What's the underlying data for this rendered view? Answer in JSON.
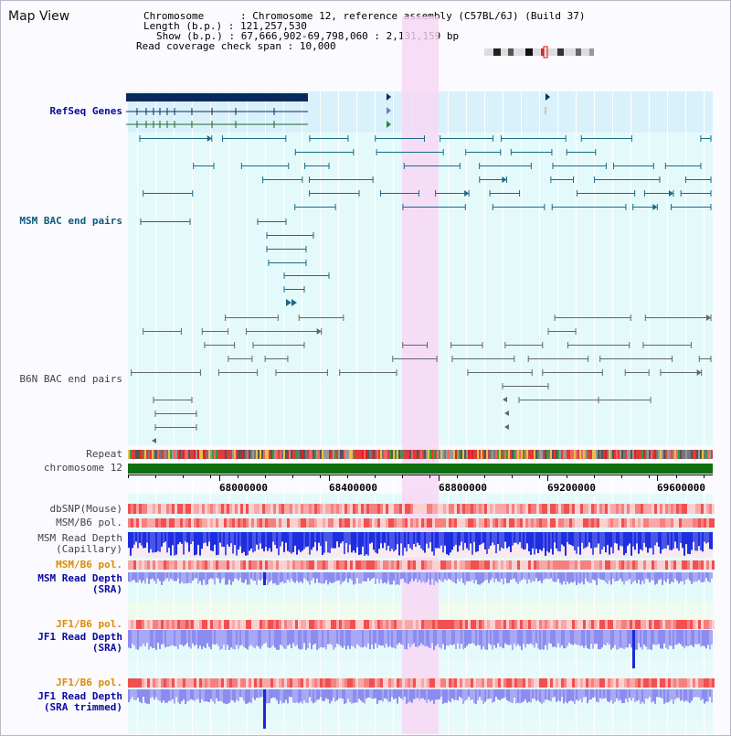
{
  "header": {
    "title": "Map View",
    "chromosome_label": "Chromosome",
    "chromosome_value": "Chromosome 12, reference assembly (C57BL/6J) (Build 37)",
    "length_label": "Length (b.p.)",
    "length_value": "121,257,530",
    "show_label": "Show (b.p.)",
    "show_value": "67,666,902-69,798,060 : 2,131,159 bp",
    "coverage_label": "Read coverage check span",
    "coverage_value": "10,000"
  },
  "tracks": {
    "refseq": "RefSeq Genes",
    "msm_bac": "MSM BAC end pairs",
    "b6n_bac": "B6N BAC end pairs",
    "repeat": "Repeat",
    "chromosome": "chromosome 12",
    "dbsnp": "dbSNP(Mouse)",
    "msm_b6_pol_1": "MSM/B6 pol.",
    "msm_read_cap_1": "MSM Read Depth",
    "msm_read_cap_2": "(Capillary)",
    "msm_b6_pol_2": "MSM/B6 pol.",
    "msm_read_sra_1": "MSM Read Depth",
    "msm_read_sra_2": "(SRA)",
    "jf1_b6_pol_1": "JF1/B6 pol.",
    "jf1_read_sra_1": "JF1 Read Depth",
    "jf1_read_sra_2": "(SRA)",
    "jf1_b6_pol_2": "JF1/B6 pol.",
    "jf1_trim_1": "JF1 Read Depth",
    "jf1_trim_2": "(SRA trimmed)"
  },
  "axis": {
    "ticks": [
      "68000000",
      "68400000",
      "68800000",
      "69200000",
      "69600000"
    ]
  },
  "colors": {
    "highlight": "#f7d6f4",
    "refseq_bg": "#d9f1fb",
    "track_bg": "#e4fafa",
    "gene_dark": "#0a2a5e",
    "msm_bac": "#1a6a88",
    "b6n_bac": "#666666",
    "chromosome": "#0f7010",
    "depth_blue": "#1d2de0",
    "depth_light": "#8c8cf0"
  }
}
